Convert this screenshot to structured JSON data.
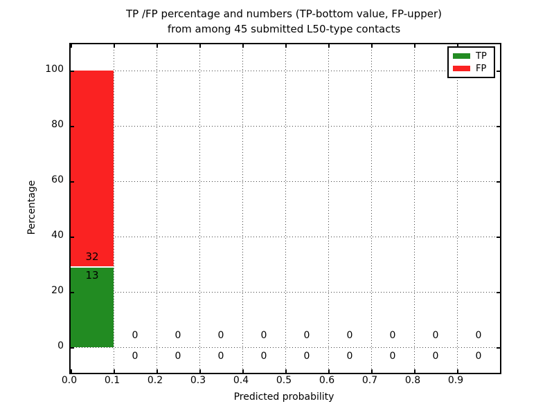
{
  "title": {
    "line1": "TP /FP percentage and numbers (TP-bottom value, FP-upper)",
    "line2": "from among 45 submitted L50-type contacts"
  },
  "axes": {
    "x_label": "Predicted probability",
    "y_label": "Percentage",
    "x_ticks": [
      "0.0",
      "0.1",
      "0.2",
      "0.3",
      "0.4",
      "0.5",
      "0.6",
      "0.7",
      "0.8",
      "0.9"
    ],
    "y_ticks": [
      "100",
      "80",
      "60",
      "40",
      "20",
      "0"
    ]
  },
  "bar": {
    "fp_count": "32",
    "tp_count": "13"
  },
  "zero_labels": {
    "upper": [
      "0",
      "0",
      "0",
      "0",
      "0",
      "0",
      "0",
      "0",
      "0"
    ],
    "lower": [
      "0",
      "0",
      "0",
      "0",
      "0",
      "0",
      "0",
      "0",
      "0"
    ]
  },
  "legend": {
    "items": [
      {
        "label": "TP",
        "color": "#228b22"
      },
      {
        "label": "FP",
        "color": "#fa2222"
      }
    ]
  },
  "chart_data": {
    "type": "bar",
    "stacked": true,
    "title": "TP /FP percentage and numbers (TP-bottom value, FP-upper)\nfrom among 45 submitted L50-type contacts",
    "xlabel": "Predicted probability",
    "ylabel": "Percentage",
    "total_contacts": 45,
    "bin_width": 0.1,
    "bin_starts": [
      0.0,
      0.1,
      0.2,
      0.3,
      0.4,
      0.5,
      0.6,
      0.7,
      0.8,
      0.9
    ],
    "series": [
      {
        "name": "TP",
        "color": "#228b22",
        "position": "bottom",
        "counts": [
          13,
          0,
          0,
          0,
          0,
          0,
          0,
          0,
          0,
          0
        ],
        "percent": [
          28.9,
          0,
          0,
          0,
          0,
          0,
          0,
          0,
          0,
          0
        ]
      },
      {
        "name": "FP",
        "color": "#fa2222",
        "position": "top",
        "counts": [
          32,
          0,
          0,
          0,
          0,
          0,
          0,
          0,
          0,
          0
        ],
        "percent": [
          71.1,
          0,
          0,
          0,
          0,
          0,
          0,
          0,
          0,
          0
        ]
      }
    ],
    "xlim": [
      0.0,
      1.0
    ],
    "ylim": [
      -9,
      110
    ],
    "xticks": [
      0.0,
      0.1,
      0.2,
      0.3,
      0.4,
      0.5,
      0.6,
      0.7,
      0.8,
      0.9
    ],
    "yticks": [
      0,
      20,
      40,
      60,
      80,
      100
    ],
    "grid": "dotted",
    "legend_position": "upper right"
  }
}
